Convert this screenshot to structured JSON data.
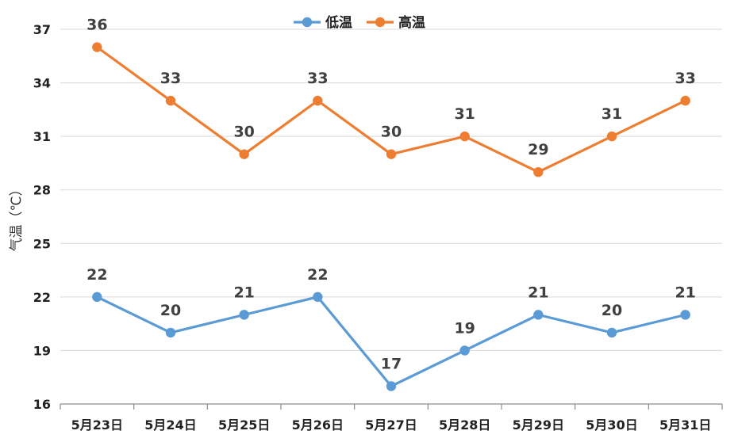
{
  "chart_data": {
    "type": "line",
    "title": "",
    "xlabel": "",
    "ylabel": "气温（℃）",
    "categories": [
      "5月23日",
      "5月24日",
      "5月25日",
      "5月26日",
      "5月27日",
      "5月28日",
      "5月29日",
      "5月30日",
      "5月31日"
    ],
    "yticks": [
      16,
      19,
      22,
      25,
      28,
      31,
      34,
      37
    ],
    "ylim": [
      16,
      37
    ],
    "grid": true,
    "legend_position": "top-center",
    "series": [
      {
        "name": "低温",
        "color": "#5B9BD5",
        "values": [
          22,
          20,
          21,
          22,
          17,
          19,
          21,
          20,
          21
        ]
      },
      {
        "name": "高温",
        "color": "#ED7D31",
        "values": [
          36,
          33,
          30,
          33,
          30,
          31,
          29,
          31,
          33
        ]
      }
    ]
  }
}
